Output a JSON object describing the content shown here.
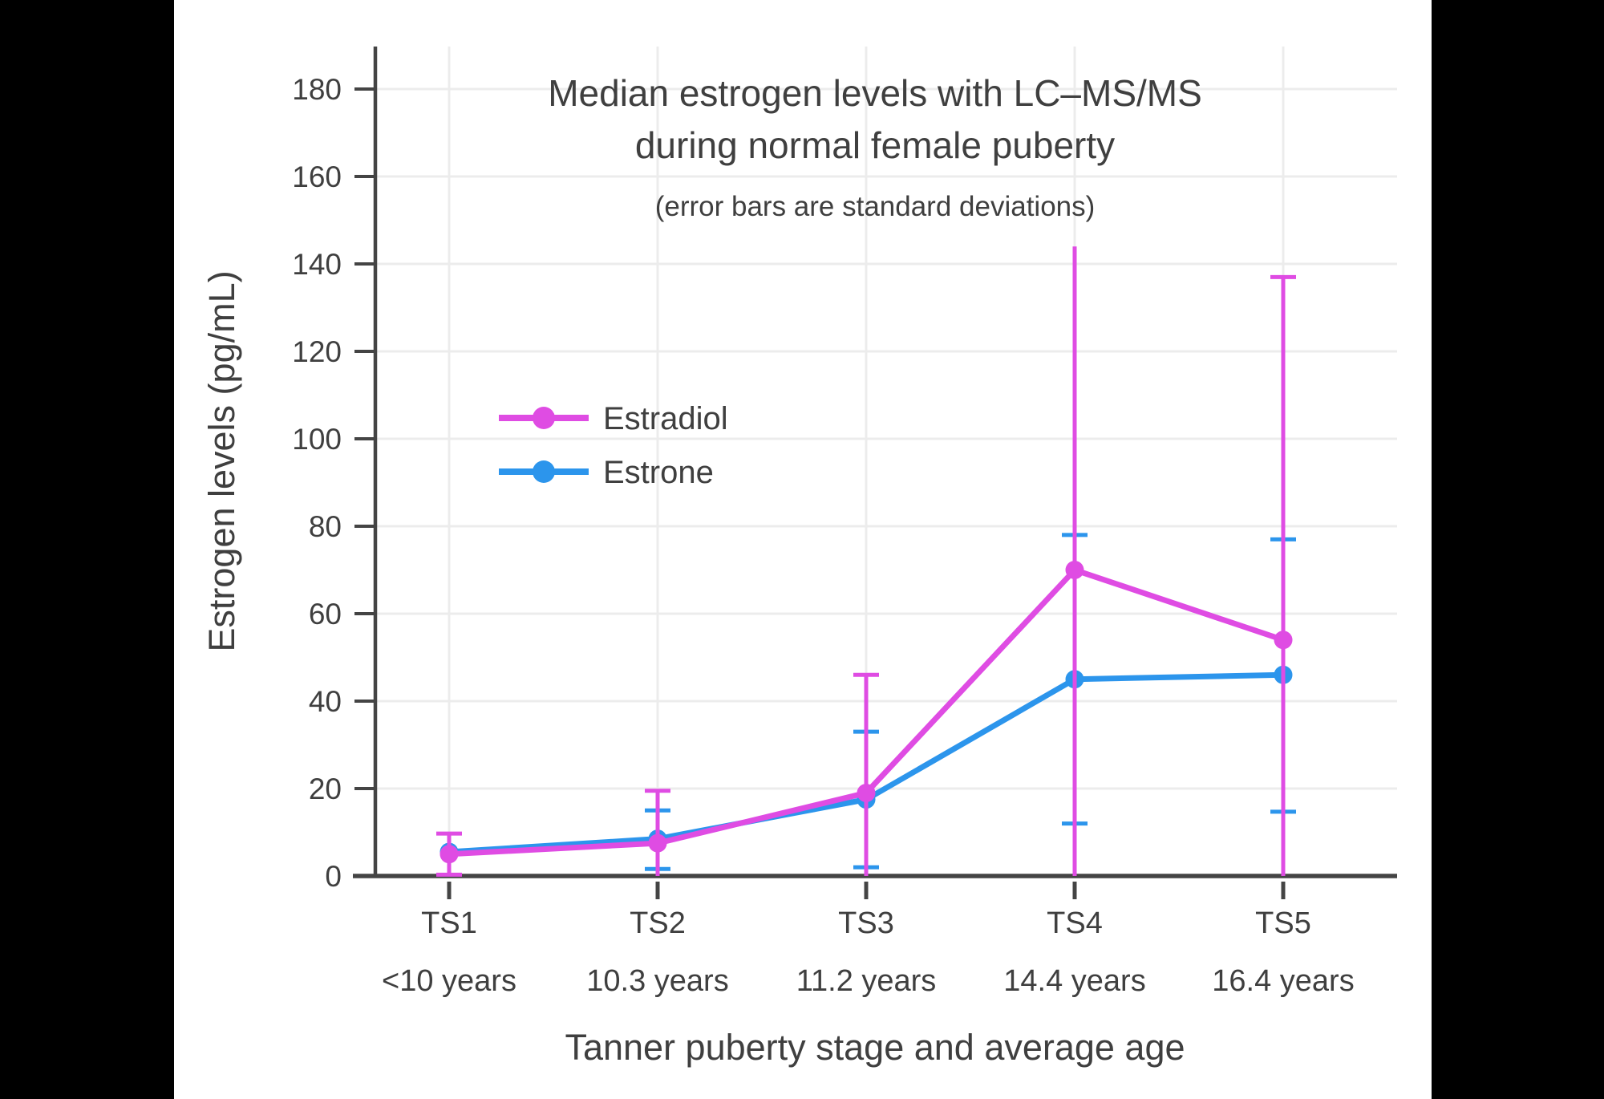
{
  "figure": {
    "title_line1": "Median estrogen levels with LC–MS/MS",
    "title_line2": "during normal female puberty",
    "subtitle": "(error bars are standard deviations)",
    "xlabel": "Tanner puberty stage and average age",
    "ylabel": "Estrogen levels (pg/mL)"
  },
  "legend": {
    "items": [
      {
        "label": "Estradiol",
        "color": "#DF4CE3"
      },
      {
        "label": "Estrone",
        "color": "#2C95EC"
      }
    ]
  },
  "colors": {
    "estradiol": "#DF4CE3",
    "estrone": "#2C95EC",
    "axis": "#444444",
    "grid": "#ECECEC",
    "text": "#3F3F3F",
    "background": "#FFFFFF",
    "letterbox": "#000000"
  },
  "chart_data": {
    "type": "line",
    "title": "Median estrogen levels with LC–MS/MS during normal female puberty",
    "subtitle": "(error bars are standard deviations)",
    "xlabel": "Tanner puberty stage and average age",
    "ylabel": "Estrogen levels (pg/mL)",
    "categories": [
      "TS1",
      "TS2",
      "TS3",
      "TS4",
      "TS5"
    ],
    "category_sublabels": [
      "<10 years",
      "10.3 years",
      "11.2 years",
      "14.4 years",
      "16.4 years"
    ],
    "ylim": [
      0,
      190
    ],
    "yticks": [
      0,
      20,
      40,
      60,
      80,
      100,
      120,
      140,
      160,
      180
    ],
    "grid": true,
    "legend_position": "inside upper-left",
    "series": [
      {
        "name": "Estrone",
        "color": "#2C95EC",
        "values": [
          5.5,
          8.5,
          17.5,
          45,
          46
        ],
        "error_high": [
          null,
          15,
          33,
          78,
          77
        ],
        "error_low": [
          null,
          1.6,
          2,
          12,
          14.7
        ],
        "cap_high": [
          false,
          true,
          true,
          true,
          true
        ],
        "cap_low": [
          false,
          true,
          true,
          true,
          true
        ]
      },
      {
        "name": "Estradiol",
        "color": "#DF4CE3",
        "values": [
          5,
          7.5,
          19,
          70,
          54
        ],
        "error_high": [
          9.7,
          19.5,
          46,
          144,
          137
        ],
        "error_low": [
          0.3,
          0,
          0,
          0,
          0
        ],
        "cap_high": [
          true,
          true,
          true,
          false,
          true
        ],
        "cap_low": [
          true,
          false,
          false,
          false,
          false
        ]
      }
    ]
  }
}
